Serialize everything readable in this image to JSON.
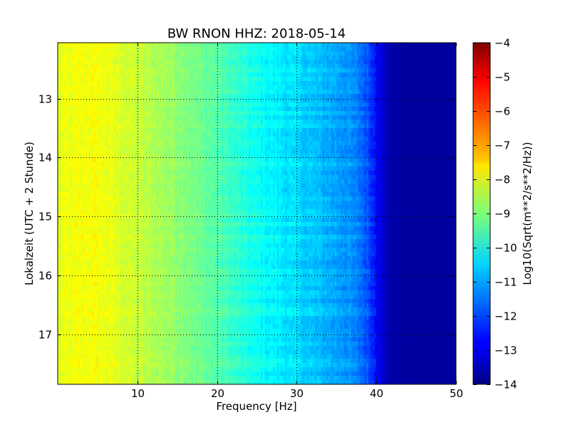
{
  "chart_data": {
    "type": "heatmap",
    "title": "BW RNON HHZ: 2018-05-14",
    "xlabel": "Frequency [Hz]",
    "ylabel": "Lokalzeit (UTC + 2 Stunde)",
    "xlim": [
      0,
      50
    ],
    "ylim": [
      12.05,
      17.85
    ],
    "x_ticks": [
      10,
      20,
      30,
      40,
      50
    ],
    "y_ticks": [
      13,
      14,
      15,
      16,
      17
    ],
    "y_inverted": true,
    "grid": true,
    "colormap": "jet",
    "colorbar": {
      "label": "Log10(Sqrt(m**2/s**2/Hz))",
      "range": [
        -14,
        -4
      ],
      "ticks": [
        -4,
        -5,
        -6,
        -7,
        -8,
        -9,
        -10,
        -11,
        -12,
        -13,
        -14
      ]
    },
    "spectrum_profile": {
      "frequency_hz": [
        0,
        2,
        4,
        6,
        8,
        10,
        12,
        14,
        16,
        18,
        20,
        22,
        24,
        26,
        28,
        30,
        32,
        34,
        36,
        38,
        39,
        40,
        41,
        42,
        44,
        46,
        48,
        50
      ],
      "log10_amplitude": [
        -8.0,
        -7.9,
        -7.8,
        -7.9,
        -8.1,
        -8.3,
        -8.5,
        -8.7,
        -8.9,
        -9.2,
        -9.4,
        -9.7,
        -10.0,
        -10.2,
        -10.4,
        -10.6,
        -10.8,
        -11.0,
        -11.2,
        -11.6,
        -12.0,
        -12.6,
        -13.3,
        -13.6,
        -13.7,
        -13.7,
        -13.7,
        -13.7
      ]
    }
  }
}
